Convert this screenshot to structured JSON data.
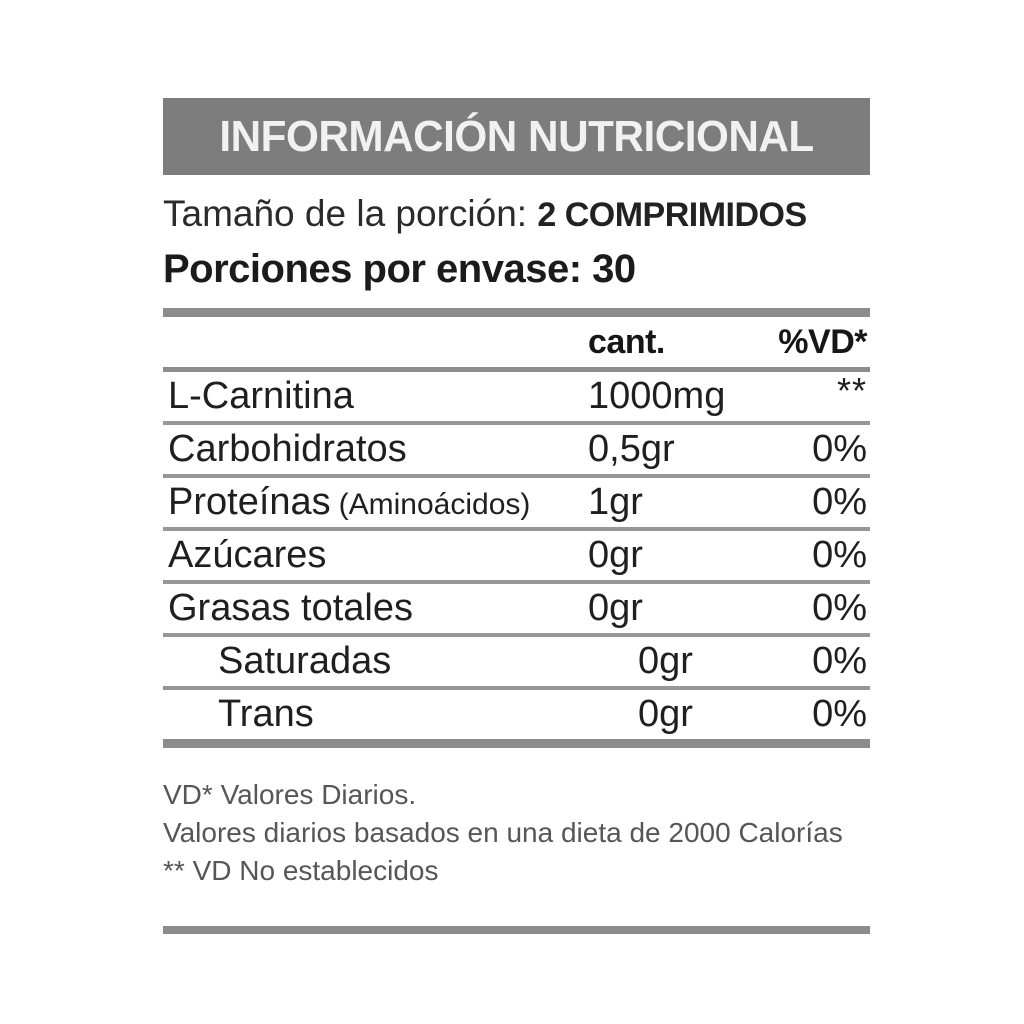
{
  "label": {
    "title": "INFORMACIÓN NUTRICIONAL",
    "serving_size": {
      "label": "Tamaño de la porción:",
      "value": "2 COMPRIMIDOS"
    },
    "servings": {
      "label": "Porciones por envase:",
      "value": "30"
    },
    "table": {
      "headers": {
        "amount": "cant.",
        "dv": "%VD*"
      },
      "rows": [
        {
          "name": "L-Carnitina",
          "amount": "1000mg",
          "dv": "**"
        },
        {
          "name": "Carbohidratos",
          "amount": "0,5gr",
          "dv": "0%"
        },
        {
          "name": "Proteínas",
          "note": "(Aminoácidos)",
          "amount": "1gr",
          "dv": "0%"
        },
        {
          "name": "Azúcares",
          "amount": "0gr",
          "dv": "0%"
        },
        {
          "name": "Grasas totales",
          "amount": "0gr",
          "dv": "0%"
        },
        {
          "name": "Saturadas",
          "amount": "0gr",
          "dv": "0%"
        },
        {
          "name": "Trans",
          "amount": "0gr",
          "dv": "0%"
        }
      ]
    },
    "footnotes": [
      "VD* Valores Diarios.",
      "Valores diarios basados en una dieta de 2000 Calorías",
      "** VD No establecidos"
    ],
    "colors": {
      "title_bar_gray": "#7d7d7d",
      "title_text": "#f1f1f1",
      "body_text": "#1f1f1f",
      "divider_gray": "#8c8c8c",
      "footnote_gray": "#56565a"
    }
  }
}
